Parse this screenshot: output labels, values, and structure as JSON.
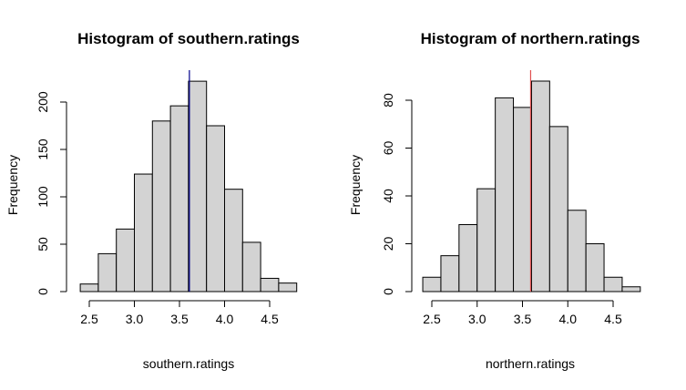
{
  "chart_data": [
    {
      "type": "bar",
      "title": "Histogram of southern.ratings",
      "xlabel": "southern.ratings",
      "ylabel": "Frequency",
      "bin_edges": [
        2.4,
        2.6,
        2.8,
        3.0,
        3.2,
        3.4,
        3.6,
        3.8,
        4.0,
        4.2,
        4.4,
        4.6,
        4.8
      ],
      "values": [
        8,
        40,
        66,
        124,
        180,
        196,
        222,
        175,
        108,
        52,
        14,
        9
      ],
      "x_ticks": [
        "2.5",
        "3.0",
        "3.5",
        "4.0",
        "4.5"
      ],
      "y_ticks": [
        "0",
        "50",
        "100",
        "150",
        "200"
      ],
      "xlim": [
        2.4,
        4.8
      ],
      "ylim": [
        0,
        230
      ],
      "mean_line": {
        "x": 3.61,
        "color": "#00008b"
      },
      "bar_color": "#d3d3d3",
      "grid": false
    },
    {
      "type": "bar",
      "title": "Histogram of northern.ratings",
      "xlabel": "northern.ratings",
      "ylabel": "Frequency",
      "bin_edges": [
        2.4,
        2.6,
        2.8,
        3.0,
        3.2,
        3.4,
        3.6,
        3.8,
        4.0,
        4.2,
        4.4,
        4.6,
        4.8
      ],
      "values": [
        6,
        15,
        28,
        43,
        81,
        77,
        88,
        69,
        34,
        20,
        6,
        2
      ],
      "x_ticks": [
        "2.5",
        "3.0",
        "3.5",
        "4.0",
        "4.5"
      ],
      "y_ticks": [
        "0",
        "20",
        "40",
        "60",
        "80"
      ],
      "xlim": [
        2.4,
        4.8
      ],
      "ylim": [
        0,
        90
      ],
      "mean_line": {
        "x": 3.59,
        "color": "#e05050"
      },
      "bar_color": "#d3d3d3",
      "grid": false
    }
  ]
}
